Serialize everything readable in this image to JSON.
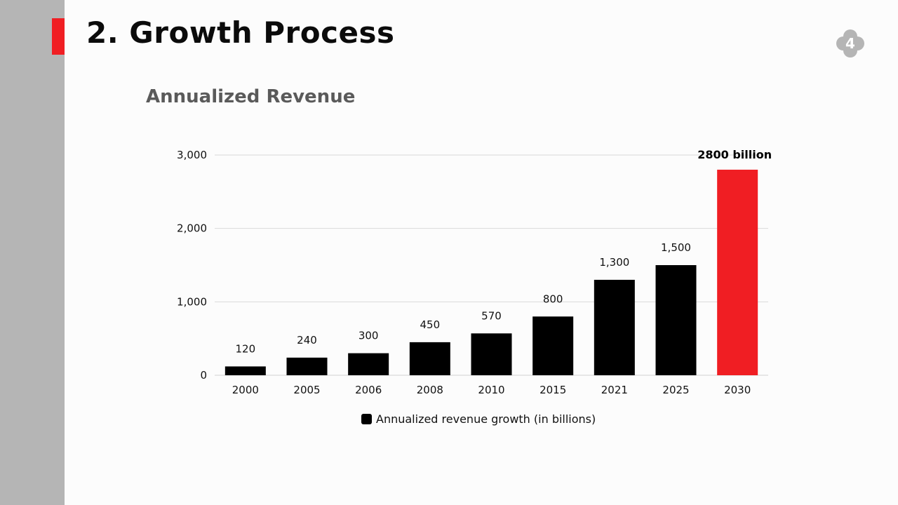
{
  "slide": {
    "title": "2. Growth Process",
    "page_number": "4",
    "subtitle": "Annualized Revenue"
  },
  "colors": {
    "accent": "#f01e23",
    "bar": "#000000",
    "highlight_bar": "#f01e23",
    "sidebar": "#b5b5b5"
  },
  "chart_data": {
    "type": "bar",
    "categories": [
      "2000",
      "2005",
      "2006",
      "2008",
      "2010",
      "2015",
      "2021",
      "2025",
      "2030"
    ],
    "series": [
      {
        "name": "Annualized revenue growth (in billions)",
        "values": [
          120,
          240,
          300,
          450,
          570,
          800,
          1300,
          1500,
          2800
        ]
      }
    ],
    "data_labels": [
      "120",
      "240",
      "300",
      "450",
      "570",
      "800",
      "1,300",
      "1,500",
      "2800 billion"
    ],
    "highlight_index": 8,
    "yticks": [
      "0",
      "1,000",
      "2,000",
      "3,000"
    ],
    "ylim": [
      0,
      3000
    ],
    "grid": true,
    "legend": "bottom"
  }
}
